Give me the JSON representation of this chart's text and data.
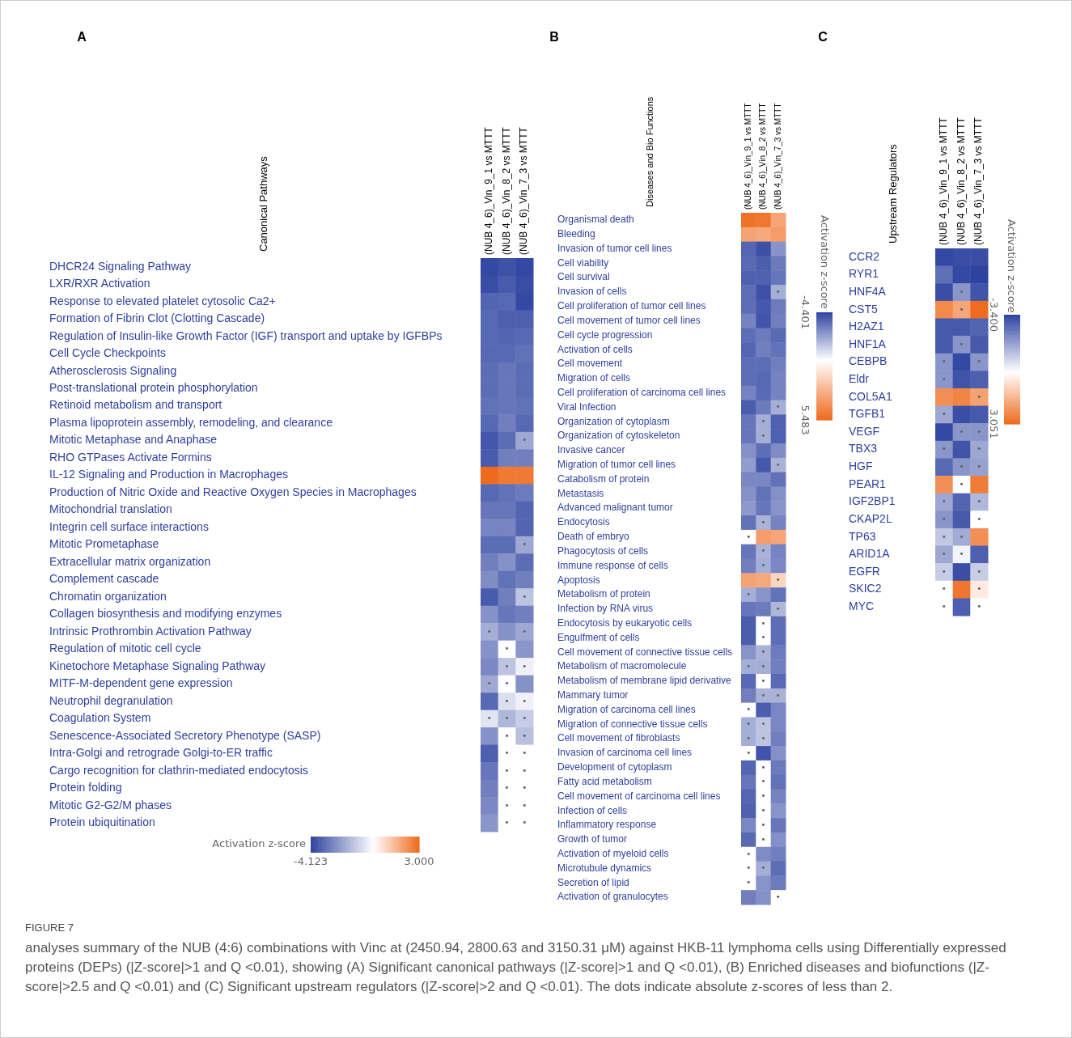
{
  "chart_data": [
    {
      "type": "heatmap",
      "title": "A",
      "ylabel": "Canonical Pathways",
      "clabel": "Activation z-score",
      "clim": [
        -4.123,
        3
      ],
      "cticks": [
        -4.123,
        {
          "value": 3,
          "label": "3.000"
        }
      ],
      "categories": [
        "(NUB 4_6)_Vin_9_1 vs MTTT",
        "(NUB 4_6)_Vin_8_2 vs MTTT",
        "(NUB 4_6)_Vin_7_3 vs MTTT"
      ],
      "y_categories": [
        "DHCR24 Signaling Pathway",
        "LXR/RXR Activation",
        "Response to elevated platelet cytosolic Ca2+",
        "Formation of Fibrin Clot (Clotting Cascade)",
        "Regulation of Insulin-like Growth Factor (IGF) transport and uptake by IGFBPs",
        "Cell Cycle Checkpoints",
        "Atherosclerosis Signaling",
        "Post-translational protein phosphorylation",
        "Retinoid metabolism and transport",
        "Plasma lipoprotein assembly, remodeling, and clearance",
        "Mitotic Metaphase and Anaphase",
        "RHO GTPases Activate Formins",
        "IL-12 Signaling and Production in Macrophages",
        "Production of Nitric Oxide and Reactive Oxygen Species in Macrophages",
        "Mitochondrial translation",
        "Integrin cell surface interactions",
        "Mitotic Prometaphase",
        "Extracellular matrix organization",
        "Complement cascade",
        "Chromatin organization",
        "Collagen biosynthesis and modifying enzymes",
        "Intrinsic Prothrombin Activation Pathway",
        "Regulation of mitotic cell cycle",
        "Kinetochore Metaphase Signaling Pathway",
        "MITF-M-dependent gene expression",
        "Neutrophil degranulation",
        "Coagulation System",
        "Senescence-Associated Secretory Phenotype (SASP)",
        "Intra-Golgi and retrograde Golgi-to-ER traffic",
        "Cargo recognition for clathrin-mediated endocytosis",
        "Protein folding",
        "Mitotic G2-G2/M phases",
        "Protein ubiquitination"
      ],
      "cells": [
        [
          -4,
          -3.8,
          -4
        ],
        [
          -3.9,
          -3.6,
          -3.9
        ],
        [
          -3.4,
          -3.3,
          -4
        ],
        [
          -3.3,
          -3.5,
          -3.5
        ],
        [
          -3.3,
          -3.4,
          -3.3
        ],
        [
          -3.3,
          -3.3,
          -3.1
        ],
        [
          -3.2,
          -3,
          -3.2
        ],
        [
          -3.2,
          -3,
          -3.2
        ],
        [
          -3.1,
          -3,
          -3.1
        ],
        [
          -3.3,
          -2.8,
          -3.3
        ],
        [
          -3.7,
          -3.2,
          -1.9
        ],
        [
          -3.6,
          -2.8,
          -2.8
        ],
        [
          3,
          2.7,
          2.7
        ],
        [
          -3.3,
          -3.1,
          -2.9
        ],
        [
          -3,
          -3,
          -3.4
        ],
        [
          -2.7,
          -2.7,
          -3.4
        ],
        [
          -3.2,
          -3.2,
          -1.9
        ],
        [
          -2.8,
          -2.4,
          -3.2
        ],
        [
          -2.5,
          -3.1,
          -2.8
        ],
        [
          -3.6,
          -2.8,
          -1.3
        ],
        [
          -2.4,
          -3,
          -2.8
        ],
        [
          -1.8,
          -2.4,
          -1.9
        ],
        [
          -2.4,
          0,
          -2.3
        ],
        [
          -2.6,
          -1.3,
          -0.3
        ],
        [
          -1.9,
          0,
          -2.4
        ],
        [
          -3.3,
          -0.7,
          -0.3
        ],
        [
          -0.6,
          -1.6,
          -1.1
        ],
        [
          -2.4,
          0,
          -1.4
        ],
        [
          -3.5,
          0,
          0
        ],
        [
          -3,
          0,
          0
        ],
        [
          -2.8,
          0,
          0
        ],
        [
          -2.6,
          0,
          0
        ],
        [
          -2.3,
          0,
          0
        ]
      ],
      "cell_labels": [
        [
          null,
          null,
          null
        ],
        [
          null,
          null,
          null
        ],
        [
          null,
          null,
          null
        ],
        [
          null,
          null,
          null
        ],
        [
          null,
          null,
          null
        ],
        [
          null,
          null,
          null
        ],
        [
          null,
          null,
          null
        ],
        [
          null,
          null,
          null
        ],
        [
          null,
          null,
          null
        ],
        [
          null,
          null,
          null
        ],
        [
          null,
          null,
          "•"
        ],
        [
          null,
          null,
          null
        ],
        [
          null,
          null,
          null
        ],
        [
          null,
          null,
          null
        ],
        [
          null,
          null,
          null
        ],
        [
          null,
          null,
          null
        ],
        [
          null,
          null,
          "•"
        ],
        [
          null,
          null,
          null
        ],
        [
          null,
          null,
          null
        ],
        [
          null,
          null,
          "•"
        ],
        [
          null,
          null,
          null
        ],
        [
          "•",
          null,
          "•"
        ],
        [
          null,
          "•",
          null
        ],
        [
          null,
          "•",
          "•"
        ],
        [
          "•",
          "•",
          null
        ],
        [
          null,
          "•",
          "•"
        ],
        [
          "•",
          "•",
          "•"
        ],
        [
          null,
          "•",
          "•"
        ],
        [
          null,
          "•",
          "•"
        ],
        [
          null,
          "•",
          "•"
        ],
        [
          null,
          "•",
          "•"
        ],
        [
          null,
          "•",
          "•"
        ],
        [
          null,
          "•",
          "•"
        ]
      ],
      "annotations": [
        "FIGURE 7",
        "analyses summary of the NUB (4:6) combinations with Vinc at (2450.94, 2800.63 and 3150.31 μM) against HKB-11 lymphoma cells using Differentially expressed proteins (DEPs) (|Z-score|>1 and Q <0.01), showing (A) Significant canonical pathways (|Z-score|>1 and Q <0.01), (B) Enriched diseases and biofunctions (|Z-score|>2.5 and Q <0.01) and (C) Significant upstream regulators (|Z-score|>2 and Q <0.01). The dots indicate absolute z-scores of less than 2."
      ]
    },
    {
      "type": "heatmap",
      "title": "B",
      "ylabel": "Diseases and Bio Functions",
      "clabel": "Activation z-score",
      "clim": [
        -4.401,
        5.483
      ],
      "cticks": [
        -4.401,
        5.483
      ],
      "categories": [
        "(NUB 4_6)_Vin_9_1 vs MTTT",
        "(NUB 4_6)_Vin_8_2 vs MTTT",
        "(NUB 4_6)_Vin_7_3 vs MTTT"
      ],
      "y_categories": [
        "Organismal death",
        "Bleeding",
        "Invasion of tumor cell lines",
        "Cell viability",
        "Cell survival",
        "Invasion of cells",
        "Cell proliferation of tumor cell lines",
        "Cell movement of tumor cell lines",
        "Cell cycle progression",
        "Activation of cells",
        "Cell movement",
        "Migration of cells",
        "Cell proliferation of carcinoma cell lines",
        "Viral Infection",
        "Organization of cytoplasm",
        "Organization of cytoskeleton",
        "Invasive cancer",
        "Migration of tumor cell lines",
        "Catabolism of protein",
        "Metastasis",
        "Advanced malignant tumor",
        "Endocytosis",
        "Death of embryo",
        "Phagocytosis of cells",
        "Immune response of cells",
        "Apoptosis",
        "Metabolism of protein",
        "Infection by RNA virus",
        "Endocytosis by eukaryotic cells",
        "Engulfment of cells",
        "Cell movement of connective tissue cells",
        "Metabolism of macromolecule",
        "Metabolism of membrane lipid derivative",
        "Mammary tumor",
        "Migration of carcinoma cell lines",
        "Migration of connective tissue cells",
        "Cell movement of fibroblasts",
        "Invasion of carcinoma cell lines",
        "Development of cytoplasm",
        "Fatty acid metabolism",
        "Cell movement of carcinoma cell lines",
        "Infection of cells",
        "Inflammatory response",
        "Growth of tumor",
        "Activation of myeloid cells",
        "Microtubule dynamics",
        "Secretion of lipid",
        "Activation of granulocytes"
      ],
      "cells": [
        [
          5.2,
          5,
          3.3
        ],
        [
          3.4,
          3.2,
          3.6
        ],
        [
          -3.6,
          -4.1,
          -2.5
        ],
        [
          -3.5,
          -3.8,
          -3.1
        ],
        [
          -3.7,
          -3.7,
          -3.2
        ],
        [
          -3.4,
          -4.1,
          -1.9
        ],
        [
          -3.4,
          -3.9,
          -3.1
        ],
        [
          -2.9,
          -4,
          -3
        ],
        [
          -3.4,
          -3.1,
          -3.5
        ],
        [
          -3.6,
          -3,
          -3.3
        ],
        [
          -3.4,
          -3.4,
          -3
        ],
        [
          -3.4,
          -3.5,
          -2.9
        ],
        [
          -2.9,
          -3.5,
          -2.9
        ],
        [
          -3.8,
          -3.1,
          -1.9
        ],
        [
          -3.2,
          -1.9,
          -3.7
        ],
        [
          -3.2,
          -1.9,
          -3.7
        ],
        [
          -2.6,
          -3.4,
          -2.7
        ],
        [
          -2.3,
          -3.9,
          -1.8
        ],
        [
          -2.8,
          -2.8,
          -3.3
        ],
        [
          -2.6,
          -3.3,
          -2.6
        ],
        [
          -2.4,
          -3.2,
          -2.5
        ],
        [
          -3.3,
          -1.8,
          -2.9
        ],
        [
          0,
          3.6,
          3.3
        ],
        [
          -3.2,
          -1.8,
          -2.9
        ],
        [
          -3,
          -1.9,
          -2.8
        ],
        [
          3.4,
          3.2,
          1.5
        ],
        [
          -1.9,
          -2.5,
          -3.3
        ],
        [
          -3.2,
          -3.1,
          -1.7
        ],
        [
          -3.8,
          0,
          -3.4
        ],
        [
          -3.8,
          0,
          -3.4
        ],
        [
          -2.5,
          -1.8,
          -3.1
        ],
        [
          -1.9,
          -1.9,
          -3
        ],
        [
          -3.5,
          0,
          -3.5
        ],
        [
          -3,
          -1.8,
          -1.8
        ],
        [
          0,
          -3.8,
          -2.8
        ],
        [
          -1.9,
          -1.4,
          -2.8
        ],
        [
          -1.9,
          -1.4,
          -3
        ],
        [
          0,
          -4,
          -2.6
        ],
        [
          -3.6,
          0,
          -3.1
        ],
        [
          -3.2,
          0,
          -3.3
        ],
        [
          -3.6,
          0,
          -2.9
        ],
        [
          -3.7,
          0,
          -2.5
        ],
        [
          -2.8,
          0,
          -3.2
        ],
        [
          -3.5,
          0,
          -2.6
        ],
        [
          0,
          -2.7,
          -3
        ],
        [
          0,
          -1.9,
          -3.4
        ],
        [
          0,
          -2.5,
          -3.1
        ],
        [
          -3,
          -2.6,
          0
        ]
      ],
      "cell_labels": [
        [
          null,
          null,
          null
        ],
        [
          null,
          null,
          null
        ],
        [
          null,
          null,
          null
        ],
        [
          null,
          null,
          null
        ],
        [
          null,
          null,
          null
        ],
        [
          null,
          null,
          "•"
        ],
        [
          null,
          null,
          null
        ],
        [
          null,
          null,
          null
        ],
        [
          null,
          null,
          null
        ],
        [
          null,
          null,
          null
        ],
        [
          null,
          null,
          null
        ],
        [
          null,
          null,
          null
        ],
        [
          null,
          null,
          null
        ],
        [
          null,
          null,
          "•"
        ],
        [
          null,
          "•",
          null
        ],
        [
          null,
          "•",
          null
        ],
        [
          null,
          null,
          null
        ],
        [
          null,
          null,
          "•"
        ],
        [
          null,
          null,
          null
        ],
        [
          null,
          null,
          null
        ],
        [
          null,
          null,
          null
        ],
        [
          null,
          "•",
          null
        ],
        [
          "•",
          null,
          null
        ],
        [
          null,
          "•",
          null
        ],
        [
          null,
          "•",
          null
        ],
        [
          null,
          null,
          "•"
        ],
        [
          "•",
          null,
          null
        ],
        [
          null,
          null,
          "•"
        ],
        [
          null,
          "•",
          null
        ],
        [
          null,
          "•",
          null
        ],
        [
          null,
          "•",
          null
        ],
        [
          "•",
          "•",
          null
        ],
        [
          null,
          "•",
          null
        ],
        [
          null,
          "•",
          "•"
        ],
        [
          "•",
          null,
          null
        ],
        [
          "•",
          "•",
          null
        ],
        [
          "•",
          "•",
          null
        ],
        [
          "•",
          null,
          null
        ],
        [
          null,
          "•",
          null
        ],
        [
          null,
          "•",
          null
        ],
        [
          null,
          "•",
          null
        ],
        [
          null,
          "•",
          null
        ],
        [
          null,
          "•",
          null
        ],
        [
          null,
          "•",
          null
        ],
        [
          "•",
          null,
          null
        ],
        [
          "•",
          "•",
          null
        ],
        [
          "•",
          null,
          null
        ],
        [
          null,
          null,
          "•"
        ]
      ]
    },
    {
      "type": "heatmap",
      "title": "C",
      "ylabel": "Upstream Regulators",
      "clabel": "Activation z-score",
      "clim": [
        -3.4,
        3.051
      ],
      "cticks": [
        {
          "value": -3.4,
          "label": "-3.400"
        },
        3.051
      ],
      "categories": [
        "(NUB 4_6)_Vin_9_1 vs MTTT",
        "(NUB 4_6)_Vin_8_2 vs MTTT",
        "(NUB 4_6)_Vin_7_3 vs MTTT"
      ],
      "y_categories": [
        "CCR2",
        "RYR1",
        "HNF4A",
        "CST5",
        "H2AZ1",
        "HNF1A",
        "CEBPB",
        "Eldr",
        "COL5A1",
        "TGFB1",
        "VEGF",
        "TBX3",
        "HGF",
        "PEAR1",
        "IGF2BP1",
        "CKAP2L",
        "TP63",
        "ARID1A",
        "EGFR",
        "SKIC2",
        "MYC"
      ],
      "cells": [
        [
          -3.3,
          -3.2,
          -3.2
        ],
        [
          -2.6,
          -3.3,
          -3.4
        ],
        [
          -3.2,
          -1.9,
          -3.1
        ],
        [
          2.4,
          1.8,
          3
        ],
        [
          -3,
          -3,
          -2.8
        ],
        [
          -3,
          -1.9,
          -3
        ],
        [
          -1.9,
          -3.3,
          -1.9
        ],
        [
          -1.9,
          -3.1,
          -2.9
        ],
        [
          2.3,
          2.5,
          1.9
        ],
        [
          -1.6,
          -3.2,
          -3
        ],
        [
          -3.3,
          -1.9,
          -1.9
        ],
        [
          -1.9,
          -3.1,
          -1.6
        ],
        [
          -2.7,
          -1.9,
          -1.7
        ],
        [
          2.3,
          0,
          2.7
        ],
        [
          -1.6,
          -2.8,
          -1.3
        ],
        [
          -1.9,
          -3,
          0
        ],
        [
          -1,
          -1.5,
          2.3
        ],
        [
          -1.6,
          -0.2,
          -2.9
        ],
        [
          -0.9,
          -3.2,
          -0.9
        ],
        [
          0,
          2.8,
          0.4
        ],
        [
          0,
          -2.9,
          0
        ]
      ],
      "cell_labels": [
        [
          null,
          null,
          null
        ],
        [
          null,
          null,
          null
        ],
        [
          null,
          "•",
          null
        ],
        [
          null,
          "•",
          null
        ],
        [
          null,
          null,
          null
        ],
        [
          null,
          "•",
          null
        ],
        [
          "•",
          null,
          "•"
        ],
        [
          "•",
          null,
          null
        ],
        [
          null,
          null,
          "•"
        ],
        [
          "•",
          null,
          null
        ],
        [
          null,
          "•",
          "•"
        ],
        [
          "•",
          null,
          "•"
        ],
        [
          null,
          "•",
          "•"
        ],
        [
          null,
          "•",
          null
        ],
        [
          "•",
          null,
          "•"
        ],
        [
          "•",
          null,
          "•"
        ],
        [
          "•",
          "•",
          null
        ],
        [
          "•",
          "•",
          null
        ],
        [
          "•",
          null,
          "•"
        ],
        [
          "•",
          null,
          "•"
        ],
        [
          "•",
          null,
          "•"
        ]
      ]
    }
  ]
}
